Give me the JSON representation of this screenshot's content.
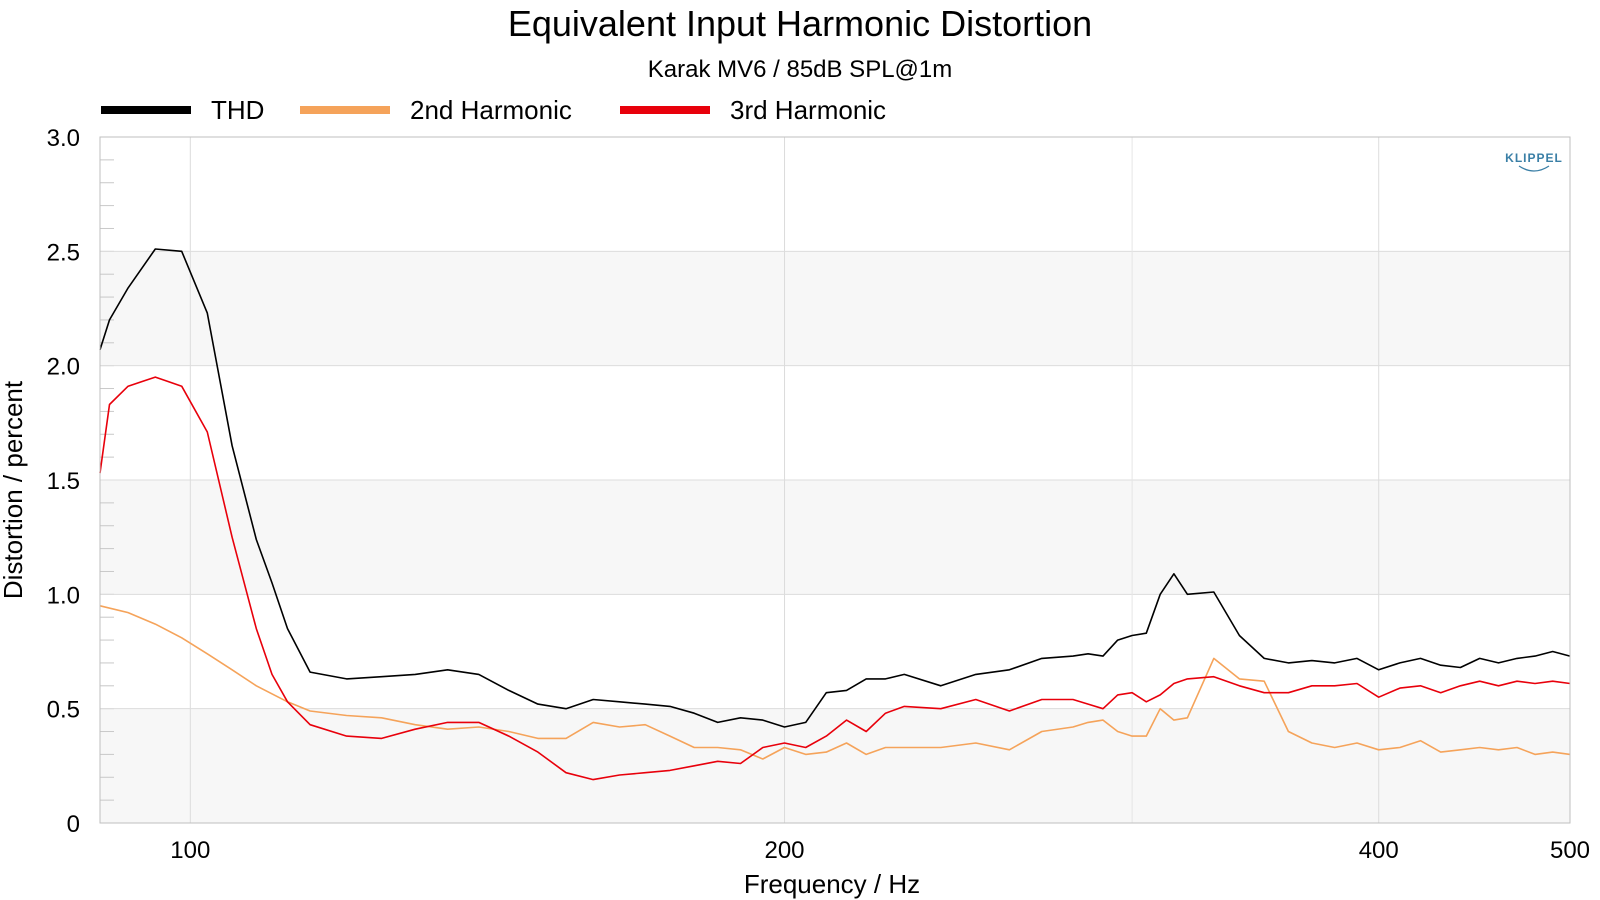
{
  "chart_data": {
    "type": "line",
    "title": "Equivalent Input Harmonic Distortion",
    "subtitle": "Karak MV6 / 85dB SPL@1m",
    "xlabel": "Frequency / Hz",
    "ylabel": "Distortion / percent",
    "x_scale": "log",
    "xlim": [
      90,
      500
    ],
    "ylim": [
      0,
      3.0
    ],
    "x_ticks": [
      {
        "value": 100,
        "label": "100"
      },
      {
        "value": 200,
        "label": "200"
      },
      {
        "value": 400,
        "label": "400"
      },
      {
        "value": 500,
        "label": "500"
      }
    ],
    "y_ticks": [
      {
        "value": 0,
        "label": "0"
      },
      {
        "value": 0.5,
        "label": "0.5"
      },
      {
        "value": 1.0,
        "label": "1.0"
      },
      {
        "value": 1.5,
        "label": "1.5"
      },
      {
        "value": 2.0,
        "label": "2.0"
      },
      {
        "value": 2.5,
        "label": "2.5"
      },
      {
        "value": 3.0,
        "label": "3.0"
      }
    ],
    "grid": true,
    "legend": "top-left, horizontal",
    "watermark": "KLIPPEL",
    "series": [
      {
        "name": "THD",
        "color": "#000000",
        "x": [
          90,
          91,
          93,
          96,
          99,
          102,
          105,
          108,
          110,
          112,
          115,
          120,
          125,
          130,
          135,
          140,
          145,
          150,
          155,
          160,
          165,
          170,
          175,
          180,
          185,
          190,
          195,
          200,
          205,
          210,
          215,
          220,
          225,
          230,
          240,
          250,
          260,
          270,
          280,
          285,
          290,
          295,
          300,
          305,
          310,
          315,
          320,
          330,
          340,
          350,
          360,
          370,
          380,
          390,
          400,
          410,
          420,
          430,
          440,
          450,
          460,
          470,
          480,
          490,
          500
        ],
        "y": [
          2.07,
          2.2,
          2.34,
          2.51,
          2.5,
          2.23,
          1.65,
          1.24,
          1.05,
          0.85,
          0.66,
          0.63,
          0.64,
          0.65,
          0.67,
          0.65,
          0.58,
          0.52,
          0.5,
          0.54,
          0.53,
          0.52,
          0.51,
          0.48,
          0.44,
          0.46,
          0.45,
          0.42,
          0.44,
          0.57,
          0.58,
          0.63,
          0.63,
          0.65,
          0.6,
          0.65,
          0.67,
          0.72,
          0.73,
          0.74,
          0.73,
          0.8,
          0.82,
          0.83,
          1.0,
          1.09,
          1.0,
          1.01,
          0.82,
          0.72,
          0.7,
          0.71,
          0.7,
          0.72,
          0.67,
          0.7,
          0.72,
          0.69,
          0.68,
          0.72,
          0.7,
          0.72,
          0.73,
          0.75,
          0.73
        ]
      },
      {
        "name": "2nd Harmonic",
        "color": "#F5A35A",
        "x": [
          90,
          93,
          96,
          99,
          102,
          105,
          108,
          112,
          115,
          120,
          125,
          130,
          135,
          140,
          145,
          150,
          155,
          160,
          165,
          170,
          175,
          180,
          185,
          190,
          195,
          200,
          205,
          210,
          215,
          220,
          225,
          230,
          240,
          250,
          260,
          270,
          280,
          285,
          290,
          295,
          300,
          305,
          310,
          315,
          320,
          330,
          340,
          350,
          360,
          370,
          380,
          390,
          400,
          410,
          420,
          430,
          440,
          450,
          460,
          470,
          480,
          490,
          500
        ],
        "y": [
          0.95,
          0.92,
          0.87,
          0.81,
          0.74,
          0.67,
          0.6,
          0.53,
          0.49,
          0.47,
          0.46,
          0.43,
          0.41,
          0.42,
          0.4,
          0.37,
          0.37,
          0.44,
          0.42,
          0.43,
          0.38,
          0.33,
          0.33,
          0.32,
          0.28,
          0.33,
          0.3,
          0.31,
          0.35,
          0.3,
          0.33,
          0.33,
          0.33,
          0.35,
          0.32,
          0.4,
          0.42,
          0.44,
          0.45,
          0.4,
          0.38,
          0.38,
          0.5,
          0.45,
          0.46,
          0.72,
          0.63,
          0.62,
          0.4,
          0.35,
          0.33,
          0.35,
          0.32,
          0.33,
          0.36,
          0.31,
          0.32,
          0.33,
          0.32,
          0.33,
          0.3,
          0.31,
          0.3
        ]
      },
      {
        "name": "3rd Harmonic",
        "color": "#E8000B",
        "x": [
          90,
          91,
          93,
          96,
          99,
          102,
          105,
          108,
          110,
          112,
          115,
          120,
          125,
          130,
          135,
          140,
          145,
          150,
          155,
          160,
          165,
          170,
          175,
          180,
          185,
          190,
          195,
          200,
          205,
          210,
          215,
          220,
          225,
          230,
          240,
          250,
          260,
          270,
          280,
          285,
          290,
          295,
          300,
          305,
          310,
          315,
          320,
          330,
          340,
          350,
          360,
          370,
          380,
          390,
          400,
          410,
          420,
          430,
          440,
          450,
          460,
          470,
          480,
          490,
          500
        ],
        "y": [
          1.53,
          1.83,
          1.91,
          1.95,
          1.91,
          1.71,
          1.25,
          0.85,
          0.65,
          0.53,
          0.43,
          0.38,
          0.37,
          0.41,
          0.44,
          0.44,
          0.38,
          0.31,
          0.22,
          0.19,
          0.21,
          0.22,
          0.23,
          0.25,
          0.27,
          0.26,
          0.33,
          0.35,
          0.33,
          0.38,
          0.45,
          0.4,
          0.48,
          0.51,
          0.5,
          0.54,
          0.49,
          0.54,
          0.54,
          0.52,
          0.5,
          0.56,
          0.57,
          0.53,
          0.56,
          0.61,
          0.63,
          0.64,
          0.6,
          0.57,
          0.57,
          0.6,
          0.6,
          0.61,
          0.55,
          0.59,
          0.6,
          0.57,
          0.6,
          0.62,
          0.6,
          0.62,
          0.61,
          0.62,
          0.61
        ]
      }
    ]
  }
}
